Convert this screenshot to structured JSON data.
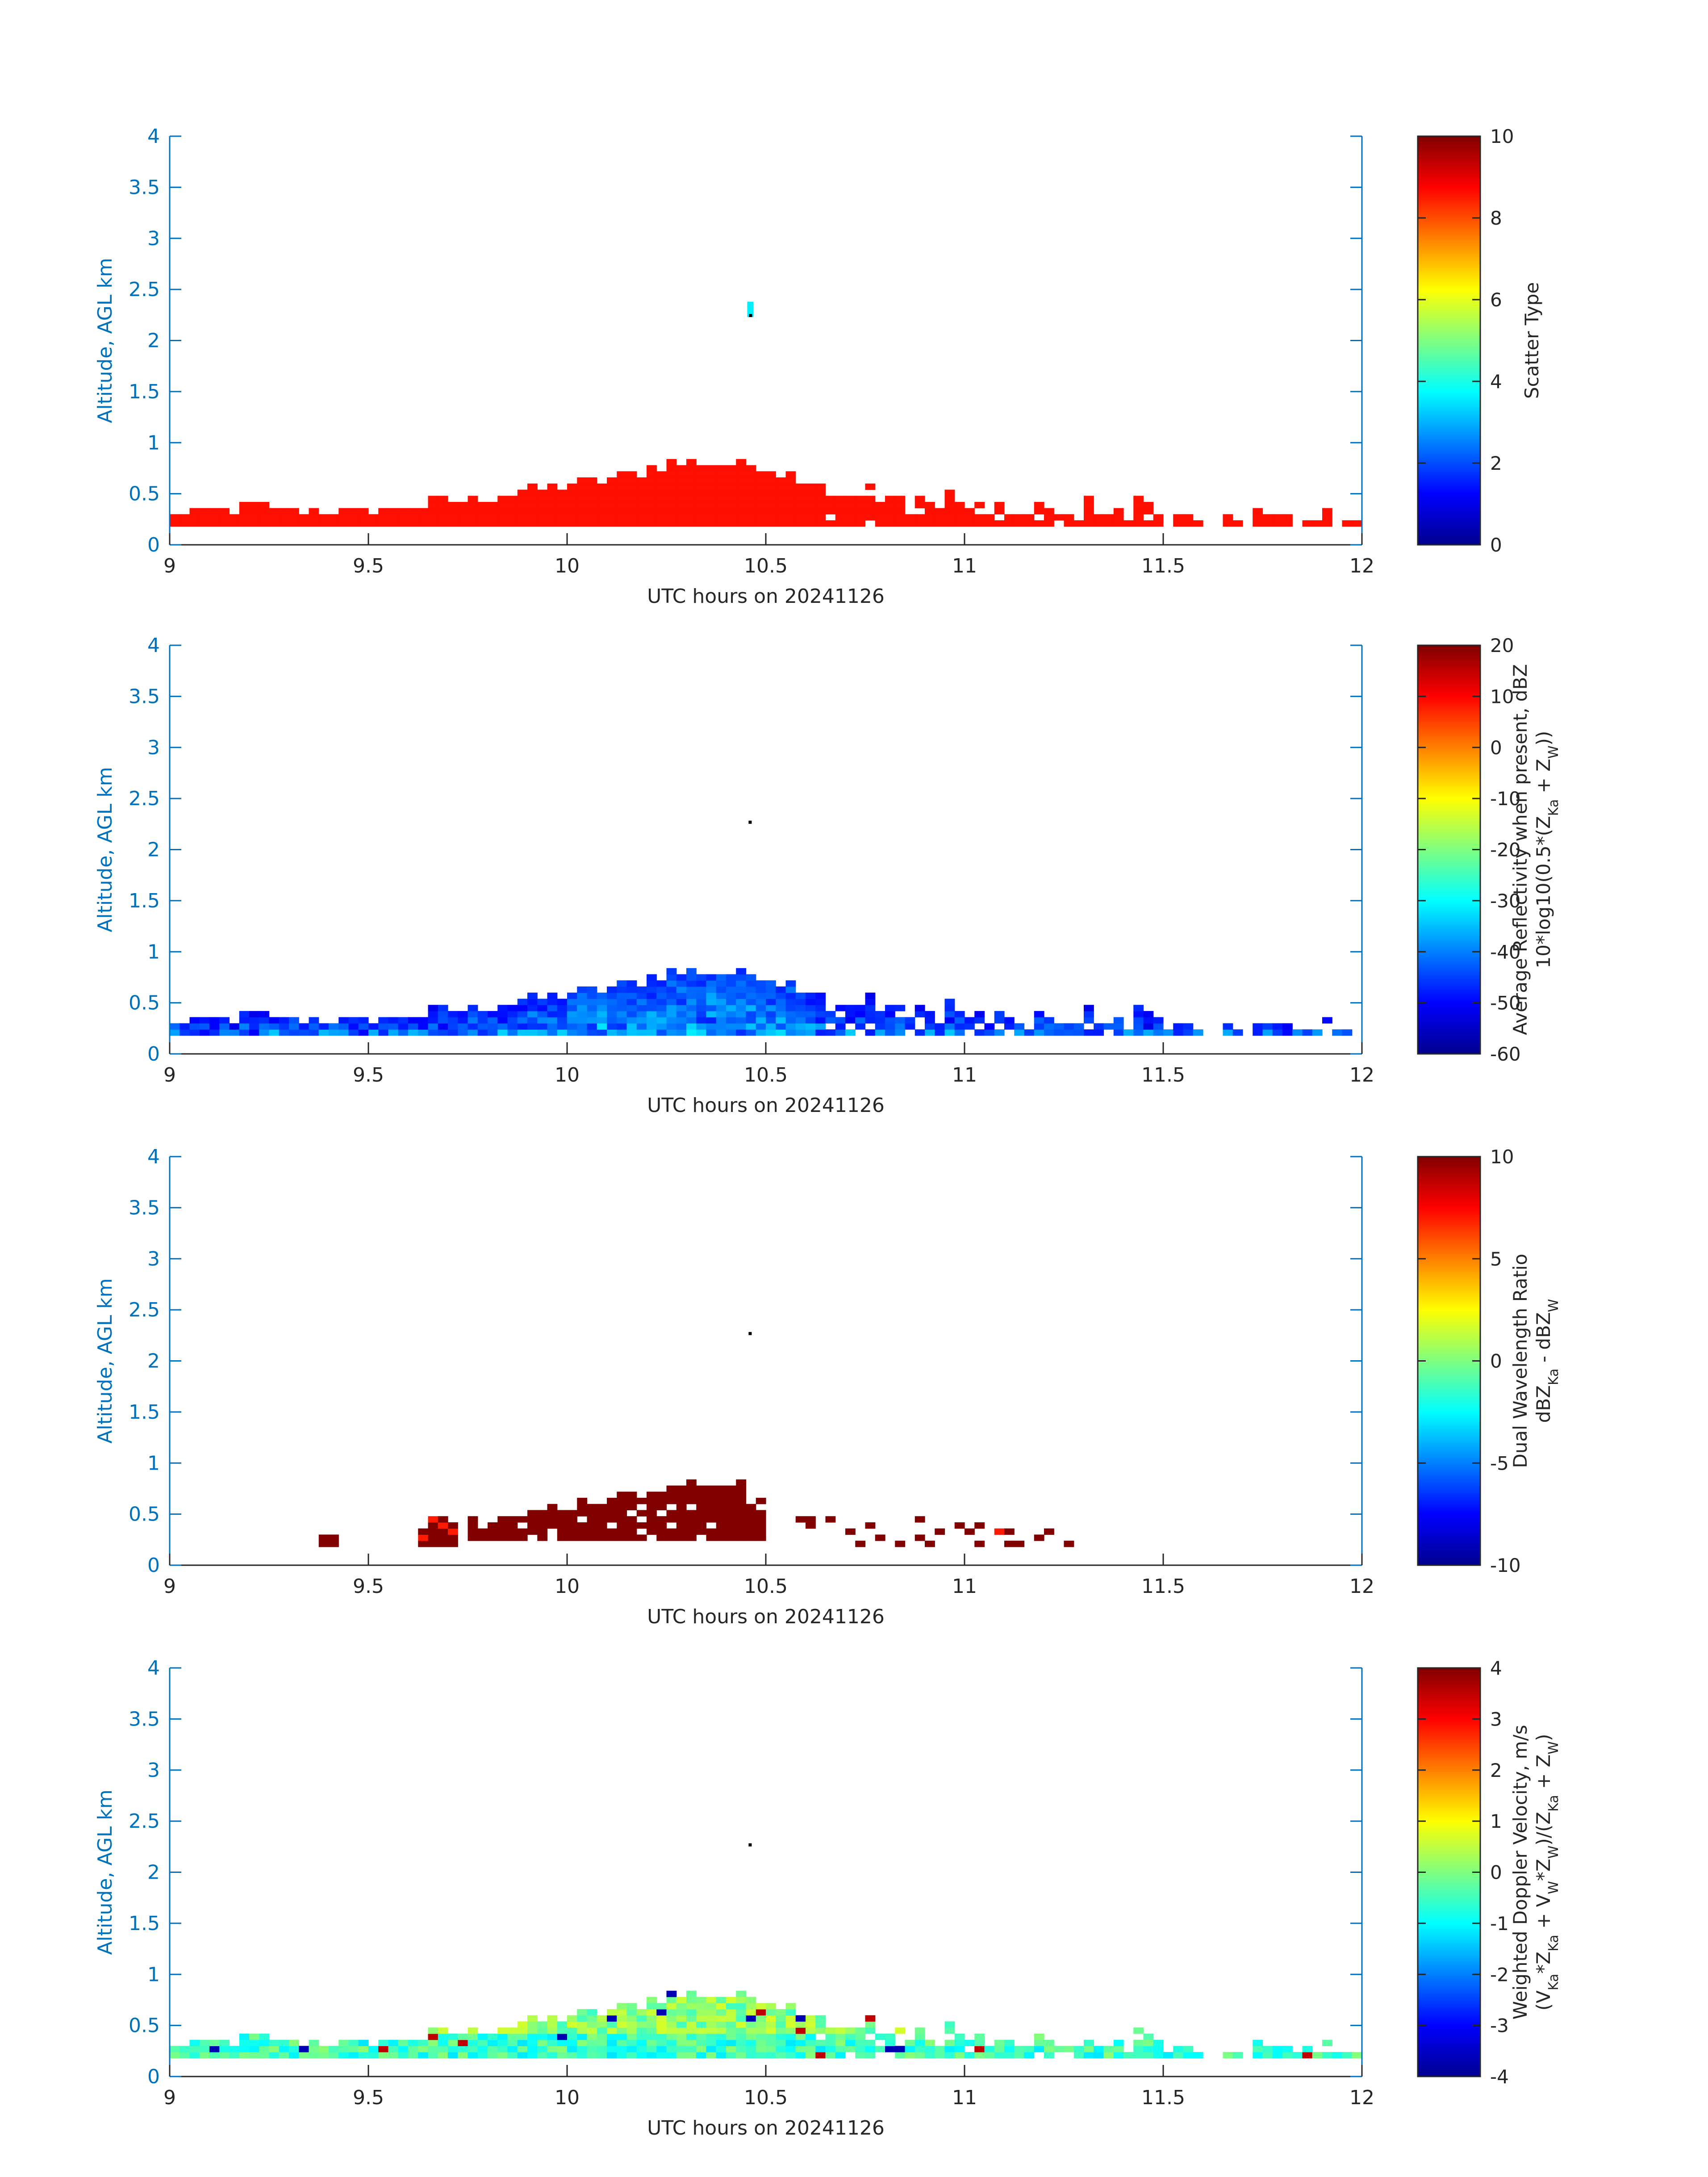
{
  "figure": {
    "xlabel": "UTC hours on 20241126",
    "ylabel": "Altitude, AGL km",
    "xlim": [
      9,
      12
    ],
    "ylim": [
      0,
      4
    ],
    "x_ticks": [
      9,
      9.5,
      10,
      10.5,
      11,
      11.5,
      12
    ],
    "y_ticks": [
      0,
      0.5,
      1,
      1.5,
      2,
      2.5,
      3,
      3.5,
      4
    ],
    "colormap": "jet",
    "axis_color": "#0072BD",
    "text_color": "#262626"
  },
  "chart_data": [
    {
      "type": "heatmap",
      "title": "",
      "xlabel": "UTC hours on 20241126",
      "ylabel": "Altitude, AGL km",
      "xlim": [
        9,
        12
      ],
      "ylim": [
        0,
        4
      ],
      "colorbar": {
        "lines": [
          "Scatter Type"
        ],
        "range": [
          0,
          10
        ],
        "ticks": [
          0,
          2,
          4,
          6,
          8,
          10
        ]
      },
      "dominant_value": 8.6,
      "cloud_base_km": 0.18,
      "echo_top_km": {
        "x": [
          9.02,
          9.1,
          9.2,
          9.3,
          9.42,
          9.5,
          9.6,
          9.7,
          9.8,
          9.9,
          10.0,
          10.1,
          10.2,
          10.3,
          10.4,
          10.5,
          10.6,
          10.7,
          10.8,
          10.9,
          11.0,
          11.1,
          11.2,
          11.3,
          11.4,
          11.5,
          11.6,
          11.7,
          11.8,
          11.9,
          11.98
        ],
        "y": [
          0.28,
          0.3,
          0.35,
          0.32,
          0.3,
          0.3,
          0.35,
          0.4,
          0.45,
          0.5,
          0.55,
          0.62,
          0.7,
          0.8,
          0.78,
          0.72,
          0.65,
          0.62,
          0.6,
          0.55,
          0.55,
          0.52,
          0.48,
          0.45,
          0.45,
          0.4,
          0.35,
          0.32,
          0.35,
          0.35,
          0.3
        ]
      },
      "isolated_echo": {
        "x": 10.46,
        "y": 2.3,
        "value": 3.6
      }
    },
    {
      "type": "heatmap",
      "title": "",
      "xlabel": "UTC hours on 20241126",
      "ylabel": "Altitude, AGL km",
      "xlim": [
        9,
        12
      ],
      "ylim": [
        0,
        4
      ],
      "colorbar": {
        "lines": [
          "Average Reflectivity when present, dBZ",
          "10*log10(0.5*(Z_Ka + Z_W))"
        ],
        "range": [
          -60,
          20
        ],
        "ticks": [
          -60,
          -50,
          -40,
          -30,
          -20,
          -10,
          0,
          10,
          20
        ]
      },
      "value_range_in_echo": [
        -55,
        -33
      ],
      "isolated_echo": {
        "x": 10.46,
        "y": 2.27,
        "value": "black dot"
      }
    },
    {
      "type": "heatmap",
      "title": "",
      "xlabel": "UTC hours on 20241126",
      "ylabel": "Altitude, AGL km",
      "xlim": [
        9,
        12
      ],
      "ylim": [
        0,
        4
      ],
      "colorbar": {
        "lines": [
          "Dual Wavelength Ratio",
          "dBZ_Ka - dBZ_W"
        ],
        "range": [
          -10,
          10
        ],
        "ticks": [
          -10,
          -5,
          0,
          5,
          10
        ]
      },
      "dominant_value": 10,
      "main_region_x": [
        9.75,
        10.5
      ],
      "isolated_echo": {
        "x": 10.46,
        "y": 2.27,
        "value": "black dot"
      }
    },
    {
      "type": "heatmap",
      "title": "",
      "xlabel": "UTC hours on 20241126",
      "ylabel": "Altitude, AGL km",
      "xlim": [
        9,
        12
      ],
      "ylim": [
        0,
        4
      ],
      "colorbar": {
        "lines": [
          "Weighted Doppler Velocity, m/s",
          "(V_Ka*Z_Ka + V_W*Z_W)/(Z_Ka + Z_W)"
        ],
        "range": [
          -4,
          4
        ],
        "ticks": [
          -4,
          -3,
          -2,
          -1,
          0,
          1,
          2,
          3,
          4
        ]
      },
      "value_range_in_echo": [
        -1.8,
        0.5
      ],
      "isolated_echo": {
        "x": 10.46,
        "y": 2.27,
        "value": "black dot"
      }
    }
  ]
}
